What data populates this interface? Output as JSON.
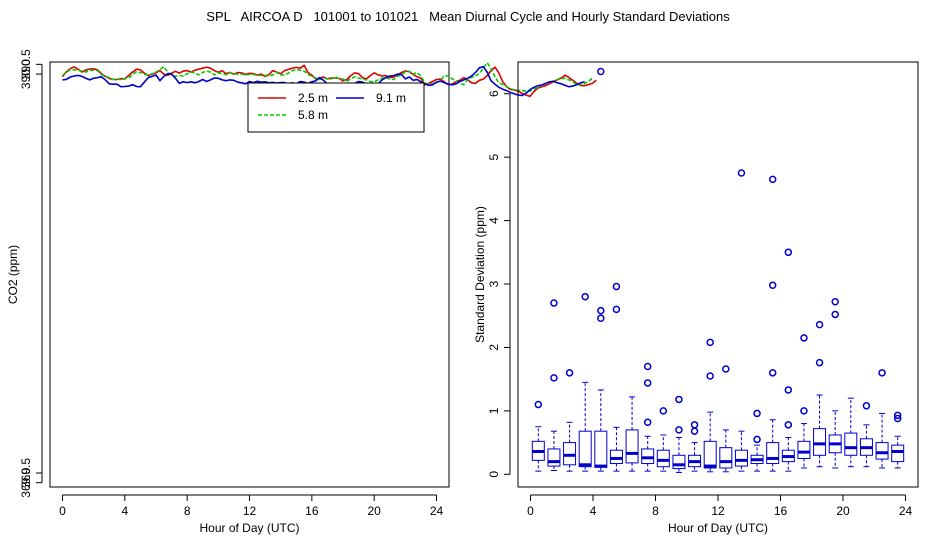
{
  "title": "SPL   AIRCOA D   101001 to 101021   Mean Diurnal Cycle and Hourly Standard Deviations",
  "colors": {
    "s25": "#dd0000",
    "s58": "#00cc00",
    "s91": "#0000cc",
    "axis": "#000000"
  },
  "chart_data": [
    {
      "type": "line",
      "xlabel": "Hour of Day (UTC)",
      "ylabel": "CO2 (ppm)",
      "xlim": [
        -0.8,
        24.8
      ],
      "ylim": [
        368.78,
        390.62
      ],
      "xticks": [
        "0",
        "4",
        "8",
        "12",
        "16",
        "20",
        "24"
      ],
      "xtick_values": [
        0,
        4,
        8,
        12,
        16,
        20,
        24
      ],
      "yticks": [
        "369.0",
        "369.5",
        "390.0",
        "390.5"
      ],
      "ytick_values": [
        369.0,
        369.5,
        390.0,
        390.5
      ],
      "legend_position": "top-right",
      "x_step": 0.25,
      "series": [
        {
          "name": "2.5 m",
          "color": "#dd0000",
          "dash": "",
          "values": [
            389.86,
            390.12,
            390.28,
            390.37,
            390.25,
            390.1,
            390.21,
            390.26,
            390.27,
            390.22,
            390.02,
            389.88,
            389.78,
            389.72,
            389.72,
            389.76,
            389.75,
            389.93,
            390.1,
            390.25,
            390.22,
            390.05,
            389.92,
            390.0,
            390.06,
            390.18,
            390.0,
            389.93,
            390.05,
            390.14,
            390.05,
            390.15,
            390.18,
            390.1,
            390.2,
            390.25,
            390.3,
            390.36,
            390.3,
            390.18,
            390.09,
            390.18,
            390.02,
            390.08,
            390.0,
            390.08,
            390.06,
            389.98,
            390.04,
            390.02,
            389.95,
            390.0,
            389.88,
            389.98,
            390.18,
            390.1,
            390.02,
            390.18,
            390.24,
            390.3,
            390.34,
            390.3,
            390.45,
            390.08,
            389.94,
            389.75,
            389.78,
            389.85,
            389.75,
            389.8,
            389.8,
            389.78,
            389.65,
            389.72,
            389.92,
            390.06,
            390.02,
            389.82,
            389.75,
            389.92,
            390.06,
            389.96,
            389.9,
            389.92,
            389.82,
            389.85,
            389.96,
            390.08,
            390.16,
            390.12,
            389.98,
            389.86,
            389.78,
            389.45,
            389.52,
            389.62,
            389.72,
            389.74,
            389.6,
            389.46,
            389.48,
            389.62,
            389.68,
            389.82,
            389.7,
            389.55,
            389.52,
            389.68,
            389.74,
            389.92,
            390.18,
            390.36,
            390.05,
            389.6,
            389.35,
            389.2,
            389.18,
            389.12,
            389.0,
            388.92,
            388.85,
            389.1,
            389.28,
            389.35,
            389.4,
            389.5,
            389.62,
            389.7,
            389.8,
            389.94,
            389.82,
            389.68,
            389.52,
            389.42,
            389.4,
            389.46,
            389.52,
            389.68
          ]
        },
        {
          "name": "5.8 m",
          "color": "#00cc00",
          "dash": "4 2",
          "values": [
            389.92,
            390.1,
            390.22,
            390.22,
            390.2,
            390.15,
            390.1,
            390.2,
            390.2,
            390.18,
            389.98,
            389.88,
            389.82,
            389.72,
            389.75,
            389.72,
            389.78,
            389.8,
            389.98,
            390.12,
            390.08,
            390.0,
            389.92,
            390.02,
            390.1,
            390.22,
            390.38,
            390.1,
            389.95,
            389.88,
            389.92,
            389.9,
            390.02,
            390.1,
            390.05,
            389.96,
            390.08,
            390.16,
            390.1,
            389.96,
            390.06,
            390.03,
            389.96,
            390.08,
            390.01,
            390.0,
            390.0,
            389.96,
            389.98,
            389.98,
            389.94,
            389.93,
            389.92,
            389.9,
            389.96,
            390.1,
            389.95,
            389.96,
            390.05,
            390.18,
            390.22,
            390.2,
            390.15,
            390.0,
            389.88,
            389.8,
            389.72,
            389.8,
            389.75,
            389.75,
            389.86,
            389.76,
            389.74,
            389.63,
            389.76,
            389.86,
            389.8,
            389.74,
            389.7,
            389.62,
            389.6,
            389.7,
            389.78,
            389.82,
            389.74,
            389.72,
            389.88,
            389.96,
            390.12,
            390.14,
            390.0,
            390.08,
            389.9,
            389.55,
            389.46,
            389.5,
            389.56,
            389.68,
            389.92,
            389.9,
            389.75,
            389.66,
            389.52,
            389.46,
            389.72,
            389.84,
            389.9,
            390.03,
            390.3,
            390.58,
            390.28,
            389.85,
            389.55,
            389.46,
            389.35,
            389.25,
            389.18,
            389.16,
            389.15,
            389.12,
            389.12,
            389.22,
            389.32,
            389.41,
            389.5,
            389.58,
            389.65,
            389.72,
            389.76,
            389.78,
            389.7,
            389.6,
            389.45,
            389.46,
            389.52,
            389.62,
            389.8
          ]
        },
        {
          "name": "9.1 m",
          "color": "#0000cc",
          "dash": "",
          "values": [
            389.7,
            389.73,
            389.85,
            389.9,
            389.93,
            389.88,
            389.78,
            389.7,
            389.78,
            389.82,
            389.86,
            389.7,
            389.5,
            389.48,
            389.48,
            389.35,
            389.36,
            389.38,
            389.46,
            389.36,
            389.35,
            389.58,
            389.82,
            389.88,
            389.95,
            389.66,
            389.88,
            390.02,
            390.0,
            389.78,
            389.52,
            389.6,
            389.56,
            389.6,
            389.55,
            389.62,
            389.72,
            389.62,
            389.7,
            389.8,
            389.78,
            389.7,
            389.66,
            389.7,
            389.68,
            389.58,
            389.55,
            389.5,
            389.62,
            389.56,
            389.63,
            389.58,
            389.6,
            389.55,
            389.57,
            389.54,
            389.56,
            389.56,
            389.5,
            389.55,
            389.5,
            389.62,
            389.58,
            389.52,
            389.6,
            389.65,
            389.82,
            389.68,
            389.5,
            389.45,
            389.43,
            389.46,
            389.48,
            389.42,
            389.4,
            389.52,
            389.62,
            389.58,
            389.5,
            389.44,
            389.34,
            389.5,
            389.7,
            389.82,
            389.9,
            389.92,
            390.0,
            389.98,
            389.75,
            389.85,
            389.68,
            389.72,
            389.6,
            389.5,
            389.42,
            389.45,
            389.58,
            389.64,
            389.56,
            389.48,
            389.45,
            389.5,
            389.62,
            389.7,
            389.78,
            389.9,
            390.08,
            390.32,
            390.38,
            390.1,
            389.65,
            389.48,
            389.32,
            389.22,
            389.15,
            389.05,
            388.98,
            388.92,
            388.9,
            389.02,
            389.2,
            389.32,
            389.4,
            389.44,
            389.52,
            389.6,
            389.62,
            389.55,
            389.5,
            389.42,
            389.35,
            389.38,
            389.46,
            389.55,
            389.6
          ]
        }
      ]
    },
    {
      "type": "box",
      "xlabel": "Hour of Day (UTC)",
      "ylabel": "Standard Deviation (ppm)",
      "xlim": [
        -0.8,
        24.8
      ],
      "ylim": [
        -0.2,
        6.5
      ],
      "xticks": [
        "0",
        "4",
        "8",
        "12",
        "16",
        "20",
        "24"
      ],
      "xtick_values": [
        0,
        4,
        8,
        12,
        16,
        20,
        24
      ],
      "yticks": [
        "0",
        "1",
        "2",
        "3",
        "4",
        "5",
        "6"
      ],
      "ytick_values": [
        0,
        1,
        2,
        3,
        4,
        5,
        6
      ],
      "color": "#0000cc",
      "boxes": [
        {
          "hour": 0.5,
          "min": 0.05,
          "q1": 0.22,
          "median": 0.36,
          "q3": 0.52,
          "max": 0.75,
          "outliers": [
            1.1
          ]
        },
        {
          "hour": 1.5,
          "min": 0.06,
          "q1": 0.13,
          "median": 0.2,
          "q3": 0.4,
          "max": 0.68,
          "outliers": [
            1.52,
            2.7
          ]
        },
        {
          "hour": 2.5,
          "min": 0.05,
          "q1": 0.15,
          "median": 0.3,
          "q3": 0.5,
          "max": 0.82,
          "outliers": [
            1.6
          ]
        },
        {
          "hour": 3.5,
          "min": 0.05,
          "q1": 0.12,
          "median": 0.15,
          "q3": 0.68,
          "max": 1.45,
          "outliers": [
            2.8
          ]
        },
        {
          "hour": 4.5,
          "min": 0.05,
          "q1": 0.11,
          "median": 0.13,
          "q3": 0.68,
          "max": 1.33,
          "outliers": [
            2.46,
            2.58,
            6.35
          ]
        },
        {
          "hour": 5.5,
          "min": 0.05,
          "q1": 0.17,
          "median": 0.25,
          "q3": 0.38,
          "max": 0.74,
          "outliers": [
            2.6,
            2.96
          ]
        },
        {
          "hour": 6.5,
          "min": 0.05,
          "q1": 0.18,
          "median": 0.33,
          "q3": 0.7,
          "max": 1.22,
          "outliers": []
        },
        {
          "hour": 7.5,
          "min": 0.05,
          "q1": 0.17,
          "median": 0.26,
          "q3": 0.4,
          "max": 0.6,
          "outliers": [
            0.82,
            1.44,
            1.7
          ]
        },
        {
          "hour": 8.5,
          "min": 0.05,
          "q1": 0.12,
          "median": 0.22,
          "q3": 0.38,
          "max": 0.62,
          "outliers": [
            1.0
          ]
        },
        {
          "hour": 9.5,
          "min": 0.03,
          "q1": 0.09,
          "median": 0.15,
          "q3": 0.3,
          "max": 0.58,
          "outliers": [
            0.7,
            1.18
          ]
        },
        {
          "hour": 10.5,
          "min": 0.05,
          "q1": 0.12,
          "median": 0.2,
          "q3": 0.3,
          "max": 0.5,
          "outliers": [
            0.68,
            0.78
          ]
        },
        {
          "hour": 11.5,
          "min": 0.04,
          "q1": 0.1,
          "median": 0.13,
          "q3": 0.52,
          "max": 0.98,
          "outliers": [
            1.55,
            2.08
          ]
        },
        {
          "hour": 12.5,
          "min": 0.04,
          "q1": 0.1,
          "median": 0.2,
          "q3": 0.42,
          "max": 0.7,
          "outliers": [
            1.66
          ]
        },
        {
          "hour": 13.5,
          "min": 0.05,
          "q1": 0.13,
          "median": 0.22,
          "q3": 0.38,
          "max": 0.68,
          "outliers": [
            4.75
          ]
        },
        {
          "hour": 14.5,
          "min": 0.05,
          "q1": 0.17,
          "median": 0.23,
          "q3": 0.3,
          "max": 0.46,
          "outliers": [
            0.55,
            0.96
          ]
        },
        {
          "hour": 15.5,
          "min": 0.05,
          "q1": 0.17,
          "median": 0.25,
          "q3": 0.5,
          "max": 0.86,
          "outliers": [
            1.6,
            2.98,
            4.65
          ]
        },
        {
          "hour": 16.5,
          "min": 0.05,
          "q1": 0.2,
          "median": 0.28,
          "q3": 0.38,
          "max": 0.58,
          "outliers": [
            0.78,
            1.33,
            3.5
          ]
        },
        {
          "hour": 17.5,
          "min": 0.1,
          "q1": 0.25,
          "median": 0.35,
          "q3": 0.52,
          "max": 0.8,
          "outliers": [
            1.0,
            2.15
          ]
        },
        {
          "hour": 18.5,
          "min": 0.12,
          "q1": 0.3,
          "median": 0.48,
          "q3": 0.72,
          "max": 1.25,
          "outliers": [
            1.76,
            2.36
          ]
        },
        {
          "hour": 19.5,
          "min": 0.1,
          "q1": 0.34,
          "median": 0.48,
          "q3": 0.62,
          "max": 1.0,
          "outliers": [
            2.52,
            2.72
          ]
        },
        {
          "hour": 20.5,
          "min": 0.12,
          "q1": 0.3,
          "median": 0.42,
          "q3": 0.65,
          "max": 1.2,
          "outliers": []
        },
        {
          "hour": 21.5,
          "min": 0.12,
          "q1": 0.3,
          "median": 0.42,
          "q3": 0.56,
          "max": 0.78,
          "outliers": [
            1.08
          ]
        },
        {
          "hour": 22.5,
          "min": 0.1,
          "q1": 0.24,
          "median": 0.34,
          "q3": 0.5,
          "max": 0.96,
          "outliers": [
            1.6
          ]
        },
        {
          "hour": 23.5,
          "min": 0.1,
          "q1": 0.2,
          "median": 0.36,
          "q3": 0.46,
          "max": 0.6,
          "outliers": [
            0.88,
            0.93
          ]
        }
      ]
    }
  ]
}
